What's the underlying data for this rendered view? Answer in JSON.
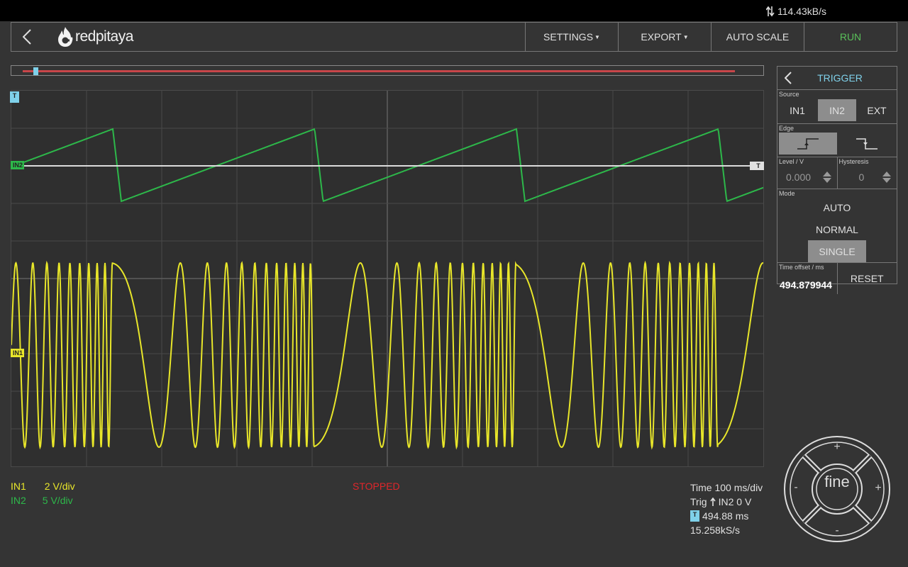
{
  "status_bar": {
    "rate": "114.43kB/s"
  },
  "navbar": {
    "logo": "redpitaya",
    "settings": "SETTINGS",
    "export": "EXPORT",
    "auto_scale": "AUTO SCALE",
    "run": "RUN"
  },
  "markers": {
    "trigger": "T",
    "in2": "IN2",
    "in1": "IN1"
  },
  "trigger_panel": {
    "title": "TRIGGER",
    "source_label": "Source",
    "sources": [
      "IN1",
      "IN2",
      "EXT"
    ],
    "selected_source": "IN2",
    "edge_label": "Edge",
    "selected_edge": "rising",
    "level_label": "Level / V",
    "level_value": "0.000",
    "hysteresis_label": "Hysteresis",
    "hysteresis_value": "0",
    "mode_label": "Mode",
    "modes": [
      "AUTO",
      "NORMAL",
      "SINGLE"
    ],
    "selected_mode": "SINGLE",
    "time_offset_label": "Time offset / ms",
    "time_offset_value": "494.879944",
    "reset": "RESET"
  },
  "channels": [
    {
      "name": "IN1",
      "scale": "2 V/div",
      "color": "#e8e62a"
    },
    {
      "name": "IN2",
      "scale": "5 V/div",
      "color": "#2db84a"
    }
  ],
  "acquisition_status": "STOPPED",
  "timebase": {
    "time": "Time 100 ms/div",
    "trig": "Trig",
    "trig_cond": "IN2 0 V",
    "offset_badge": "T",
    "offset": "494.88 ms",
    "sample_rate": "15.258kS/s"
  },
  "nav_pad": {
    "center": "fine",
    "up": "+",
    "down": "-",
    "left": "-",
    "right": "+"
  },
  "colors": {
    "in1": "#e8e62a",
    "in2": "#2db84a",
    "accent": "#7fd1ea",
    "stopped": "#e0262a",
    "run": "#59c059"
  }
}
